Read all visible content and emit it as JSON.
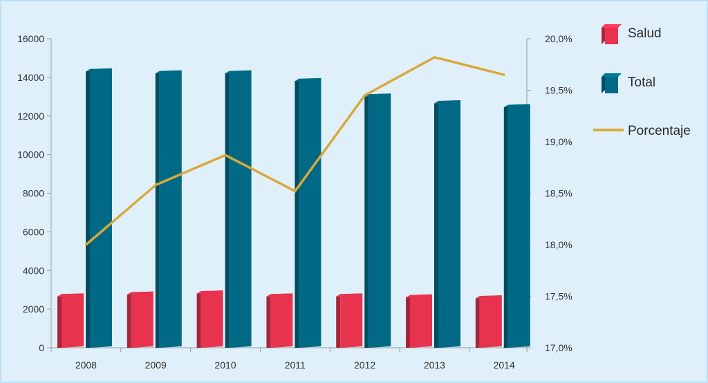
{
  "colors": {
    "background": "#dff0fa",
    "salud": "#e8334f",
    "total": "#006a86",
    "porcentaje": "#d9a93a",
    "axis": "#9a9a9a"
  },
  "chart_data": {
    "type": "bar",
    "categories": [
      "2008",
      "2009",
      "2010",
      "2011",
      "2012",
      "2013",
      "2014"
    ],
    "series": [
      {
        "name": "Salud",
        "type": "bar",
        "axis": "left",
        "values": [
          2650,
          2750,
          2800,
          2650,
          2650,
          2600,
          2550
        ]
      },
      {
        "name": "Total",
        "type": "bar",
        "axis": "left",
        "values": [
          14300,
          14200,
          14200,
          13800,
          13000,
          12650,
          12450
        ]
      },
      {
        "name": "Porcentaje",
        "type": "line",
        "axis": "right",
        "values": [
          18.0,
          18.58,
          18.87,
          18.52,
          19.45,
          19.82,
          19.65
        ]
      }
    ],
    "y_left": {
      "ylim": [
        0,
        16000
      ],
      "ticks": [
        "0",
        "2000",
        "4000",
        "6000",
        "8000",
        "10000",
        "12000",
        "14000",
        "16000"
      ]
    },
    "y_right": {
      "ylim": [
        17.0,
        20.0
      ],
      "ticks": [
        "17,0%",
        "17,5%",
        "18,0%",
        "18,5%",
        "19,0%",
        "19,5%",
        "20,0%"
      ]
    },
    "legend": {
      "position": "right",
      "items": [
        "Salud",
        "Total",
        "Porcentaje"
      ]
    },
    "grid": false,
    "bar_style": "3d"
  }
}
